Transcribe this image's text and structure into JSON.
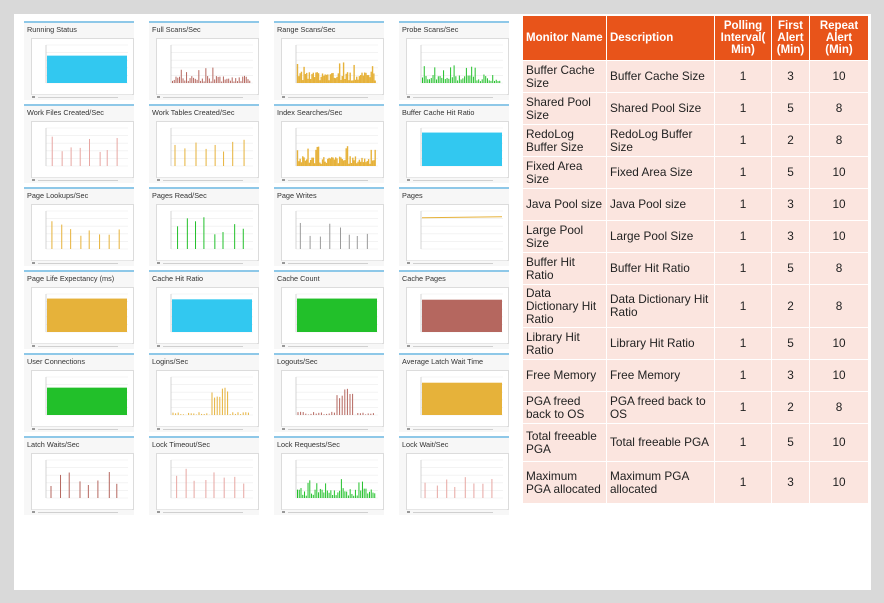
{
  "colors": {
    "header_bg": "#e8541a",
    "row_bg": "#fbe5df",
    "panel_top_border": "#8ec8e8",
    "cyan": "#32c8f0",
    "brown": "#b5675f",
    "gold": "#e6b23a",
    "green": "#22c02a",
    "pink": "#e7a6a2",
    "gray": "#9a9a9a"
  },
  "panels": [
    {
      "title": "Running Status",
      "color": "cyan",
      "style": "fill",
      "level": 0.72
    },
    {
      "title": "Full Scans/Sec",
      "color": "brown",
      "style": "spikes",
      "level": 0.25
    },
    {
      "title": "Range Scans/Sec",
      "color": "gold",
      "style": "dense",
      "level": 0.4
    },
    {
      "title": "Probe Scans/Sec",
      "color": "green",
      "style": "spikes",
      "level": 0.3
    },
    {
      "title": "Work Files Created/Sec",
      "color": "pink",
      "style": "sparse",
      "level": 0.8
    },
    {
      "title": "Work Tables Created/Sec",
      "color": "gold",
      "style": "sparse",
      "level": 0.8
    },
    {
      "title": "Index Searches/Sec",
      "color": "gold",
      "style": "dense",
      "level": 0.35
    },
    {
      "title": "Buffer Cache Hit Ratio",
      "color": "cyan",
      "style": "fill",
      "level": 0.88
    },
    {
      "title": "Page Lookups/Sec",
      "color": "gold",
      "style": "sparse",
      "level": 0.75
    },
    {
      "title": "Pages Read/Sec",
      "color": "green",
      "style": "sparse",
      "level": 0.85
    },
    {
      "title": "Page Writes",
      "color": "gray",
      "style": "sparse",
      "level": 0.7
    },
    {
      "title": "Pages",
      "color": "gold",
      "style": "line",
      "level": 0.85
    },
    {
      "title": "Page Life Expectancy (ms)",
      "color": "gold",
      "style": "fill",
      "level": 0.88
    },
    {
      "title": "Cache Hit Ratio",
      "color": "cyan",
      "style": "fill",
      "level": 0.86
    },
    {
      "title": "Cache Count",
      "color": "green",
      "style": "fill",
      "level": 0.88
    },
    {
      "title": "Cache Pages",
      "color": "brown",
      "style": "fill",
      "level": 0.85
    },
    {
      "title": "User Connections",
      "color": "green",
      "style": "fill",
      "level": 0.72
    },
    {
      "title": "Logins/Sec",
      "color": "gold",
      "style": "burst",
      "level": 0.75
    },
    {
      "title": "Logouts/Sec",
      "color": "brown",
      "style": "burst",
      "level": 0.7
    },
    {
      "title": "Average Latch Wait Time",
      "color": "gold",
      "style": "fill",
      "level": 0.85
    },
    {
      "title": "Latch Waits/Sec",
      "color": "brown",
      "style": "sparse",
      "level": 0.7
    },
    {
      "title": "Lock Timeout/Sec",
      "color": "pink",
      "style": "sparse",
      "level": 0.8
    },
    {
      "title": "Lock Requests/Sec",
      "color": "green",
      "style": "spikes",
      "level": 0.35
    },
    {
      "title": "Lock Wait/Sec",
      "color": "pink",
      "style": "sparse",
      "level": 0.55
    }
  ],
  "table": {
    "headers": [
      "Monitor Name",
      "Description",
      "Polling Interval( Min)",
      "First Alert (Min)",
      "Repeat Alert (Min)"
    ],
    "rows": [
      {
        "name": "Buffer Cache Size",
        "desc": "Buffer Cache Size",
        "poll": "1",
        "first": "3",
        "repeat": "10"
      },
      {
        "name": "Shared Pool Size",
        "desc": "Shared Pool Size",
        "poll": "1",
        "first": "5",
        "repeat": "8"
      },
      {
        "name": "RedoLog Buffer Size",
        "desc": "RedoLog Buffer Size",
        "poll": "1",
        "first": "2",
        "repeat": "8"
      },
      {
        "name": "Fixed Area Size",
        "desc": "Fixed Area Size",
        "poll": "1",
        "first": "5",
        "repeat": "10"
      },
      {
        "name": "Java Pool size",
        "desc": "Java Pool size",
        "poll": "1",
        "first": "3",
        "repeat": "10"
      },
      {
        "name": "Large Pool Size",
        "desc": "Large Pool Size",
        "poll": "1",
        "first": "3",
        "repeat": "10"
      },
      {
        "name": "Buffer Hit Ratio",
        "desc": "Buffer Hit Ratio",
        "poll": "1",
        "first": "5",
        "repeat": "8"
      },
      {
        "name": "Data Dictionary Hit Ratio",
        "desc": "Data Dictionary Hit Ratio",
        "poll": "1",
        "first": "2",
        "repeat": "8"
      },
      {
        "name": "Library Hit Ratio",
        "desc": "Library Hit Ratio",
        "poll": "1",
        "first": "5",
        "repeat": "10"
      },
      {
        "name": "Free Memory",
        "desc": "Free Memory",
        "poll": "1",
        "first": "3",
        "repeat": "10"
      },
      {
        "name": "PGA freed back to OS",
        "desc": "PGA freed back to OS",
        "poll": "1",
        "first": "2",
        "repeat": "8"
      },
      {
        "name": "Total freeable PGA",
        "desc": "Total freeable PGA",
        "poll": "1",
        "first": "5",
        "repeat": "10"
      },
      {
        "name": "Maximum PGA allocated",
        "desc": "Maximum PGA allocated",
        "poll": "1",
        "first": "3",
        "repeat": "10"
      }
    ]
  }
}
